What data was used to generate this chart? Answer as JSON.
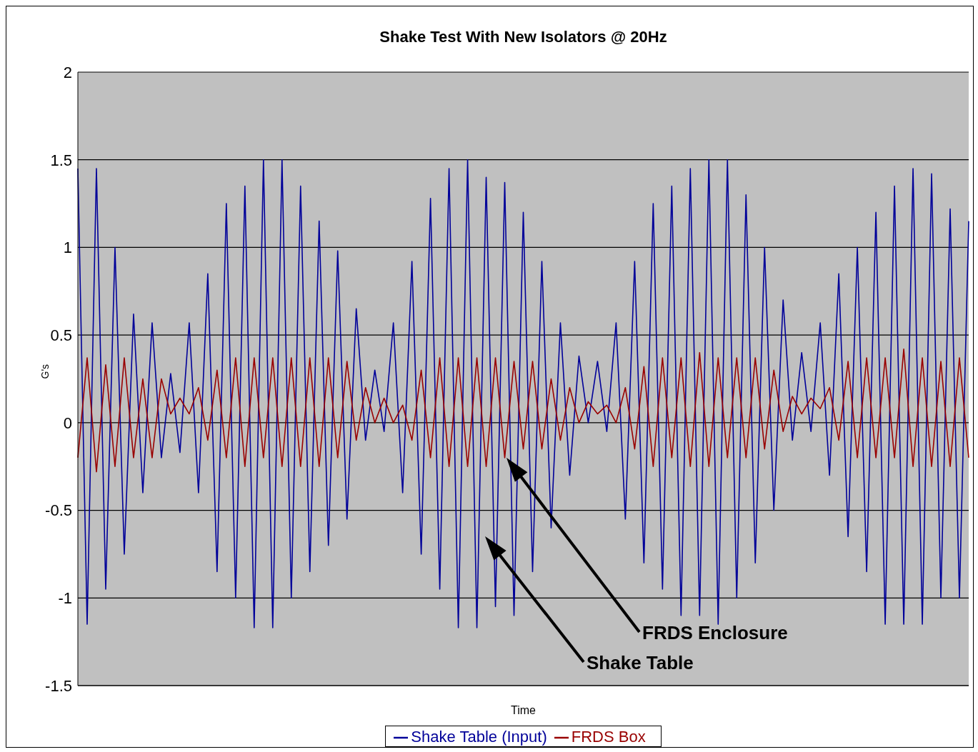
{
  "chart_data": {
    "type": "line",
    "title": "Shake Test With New Isolators @ 20Hz",
    "xlabel": "Time",
    "ylabel": "G's",
    "categories": [
      null,
      null,
      null,
      null,
      null,
      null,
      null,
      null,
      null,
      null,
      null,
      null,
      null,
      null,
      null,
      null,
      null,
      null,
      null,
      null,
      null,
      null,
      null,
      null,
      null,
      null,
      null,
      null,
      null,
      null,
      null,
      null,
      null,
      null,
      null,
      null,
      null,
      null,
      null,
      null,
      null,
      null,
      null,
      null,
      null,
      null,
      null,
      null,
      null,
      null,
      null,
      null,
      null,
      null,
      null,
      null,
      null,
      null,
      null,
      null,
      null,
      null,
      null,
      null,
      null,
      null,
      null,
      null,
      null,
      null,
      null,
      null,
      null,
      null,
      null,
      null,
      null,
      null,
      null,
      null,
      null,
      null,
      null,
      null,
      null,
      null,
      null,
      null,
      null,
      null,
      null,
      null,
      null,
      null,
      null,
      null,
      null
    ],
    "series": [
      {
        "name": "Shake Table (Input)",
        "color": "#000099",
        "values": [
          1.45,
          -1.15,
          1.45,
          -0.95,
          1.0,
          -0.75,
          0.62,
          -0.4,
          0.57,
          -0.2,
          0.28,
          -0.17,
          0.57,
          -0.4,
          0.85,
          -0.85,
          1.25,
          -1.0,
          1.35,
          -1.17,
          1.5,
          -1.17,
          1.5,
          -1.0,
          1.35,
          -0.85,
          1.15,
          -0.7,
          0.98,
          -0.55,
          0.65,
          -0.1,
          0.3,
          -0.05,
          0.57,
          -0.4,
          0.92,
          -0.75,
          1.28,
          -0.95,
          1.45,
          -1.17,
          1.5,
          -1.17,
          1.4,
          -1.05,
          1.37,
          -1.1,
          1.2,
          -0.85,
          0.92,
          -0.6,
          0.57,
          -0.3,
          0.38,
          0.0,
          0.35,
          -0.05,
          0.57,
          -0.55,
          0.92,
          -0.8,
          1.25,
          -0.95,
          1.35,
          -1.1,
          1.45,
          -1.1,
          1.5,
          -1.15,
          1.5,
          -1.0,
          1.3,
          -0.8,
          1.0,
          -0.5,
          0.7,
          -0.1,
          0.4,
          -0.05,
          0.57,
          -0.3,
          0.85,
          -0.65,
          1.0,
          -0.85,
          1.2,
          -1.15,
          1.35,
          -1.15,
          1.45,
          -1.15,
          1.42,
          -1.0,
          1.22,
          -1.0,
          1.15
        ]
      },
      {
        "name": "FRDS Box",
        "color": "#990000",
        "values": [
          -0.2,
          0.37,
          -0.28,
          0.33,
          -0.25,
          0.37,
          -0.2,
          0.25,
          -0.2,
          0.25,
          0.05,
          0.14,
          0.05,
          0.2,
          -0.1,
          0.3,
          -0.2,
          0.37,
          -0.25,
          0.37,
          -0.2,
          0.37,
          -0.25,
          0.37,
          -0.25,
          0.37,
          -0.25,
          0.37,
          -0.2,
          0.35,
          -0.1,
          0.2,
          0.0,
          0.14,
          0.0,
          0.1,
          -0.1,
          0.3,
          -0.2,
          0.37,
          -0.25,
          0.37,
          -0.25,
          0.37,
          -0.25,
          0.37,
          -0.2,
          0.35,
          -0.15,
          0.35,
          -0.15,
          0.25,
          -0.1,
          0.2,
          0.0,
          0.12,
          0.05,
          0.1,
          0.0,
          0.2,
          -0.15,
          0.32,
          -0.25,
          0.37,
          -0.2,
          0.37,
          -0.25,
          0.4,
          -0.25,
          0.37,
          -0.2,
          0.37,
          -0.2,
          0.37,
          -0.15,
          0.3,
          -0.05,
          0.15,
          0.05,
          0.14,
          0.08,
          0.2,
          -0.1,
          0.35,
          -0.2,
          0.37,
          -0.2,
          0.37,
          -0.2,
          0.42,
          -0.25,
          0.37,
          -0.25,
          0.35,
          -0.25,
          0.37,
          -0.2
        ]
      }
    ],
    "ylim": [
      -1.5,
      2
    ],
    "yticks": [
      -1.5,
      -1,
      -0.5,
      0,
      0.5,
      1,
      1.5,
      2
    ],
    "grid": "y",
    "legend": "bottom",
    "tick_labels": "y",
    "marker": "none",
    "line_style": "solid",
    "annotations": [
      "FRDS Enclosure",
      "Shake Table"
    ]
  }
}
